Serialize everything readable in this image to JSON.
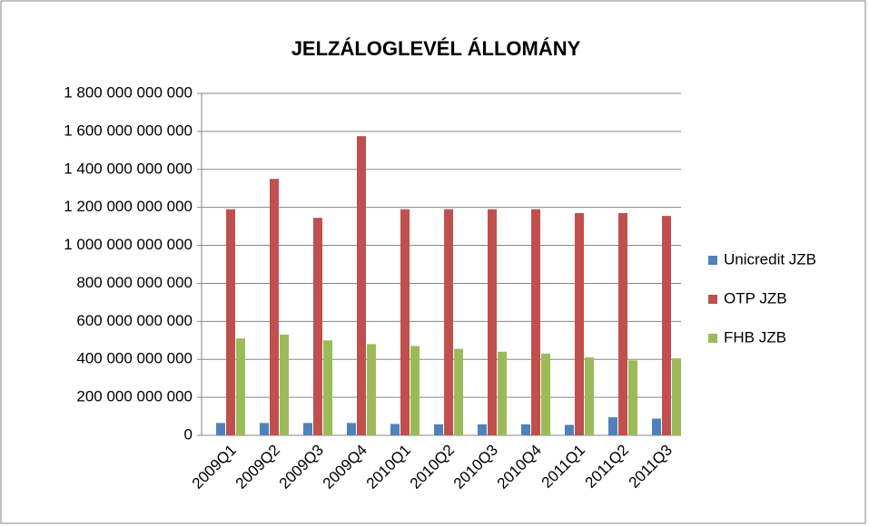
{
  "chart_data": {
    "type": "bar",
    "title": "JELZÁLOGLEVÉL ÁLLOMÁNY",
    "categories": [
      "2009Q1",
      "2009Q2",
      "2009Q3",
      "2009Q4",
      "2010Q1",
      "2010Q2",
      "2010Q3",
      "2010Q4",
      "2011Q1",
      "2011Q2",
      "2011Q3"
    ],
    "series": [
      {
        "name": "Unicredit JZB",
        "color": "#4f81bd",
        "values": [
          65000000000,
          65000000000,
          65000000000,
          65000000000,
          60000000000,
          58000000000,
          58000000000,
          58000000000,
          55000000000,
          95000000000,
          88000000000
        ]
      },
      {
        "name": "OTP JZB",
        "color": "#c0504d",
        "values": [
          1190000000000,
          1350000000000,
          1145000000000,
          1575000000000,
          1190000000000,
          1190000000000,
          1190000000000,
          1190000000000,
          1170000000000,
          1170000000000,
          1155000000000
        ]
      },
      {
        "name": "FHB JZB",
        "color": "#9bbb59",
        "values": [
          510000000000,
          530000000000,
          500000000000,
          480000000000,
          470000000000,
          455000000000,
          440000000000,
          430000000000,
          410000000000,
          395000000000,
          405000000000
        ]
      }
    ],
    "ylim": [
      0,
      1800000000000
    ],
    "yticks": [
      0,
      {
        "value": 200000000000,
        "label": "200 000 000 000"
      },
      {
        "value": 400000000000,
        "label": "400 000 000 000"
      },
      {
        "value": 600000000000,
        "label": "600 000 000 000"
      },
      {
        "value": 800000000000,
        "label": "800 000 000 000"
      },
      {
        "value": 1000000000000,
        "label": "1 000 000 000 000"
      },
      {
        "value": 1200000000000,
        "label": "1 200 000 000 000"
      },
      {
        "value": 1400000000000,
        "label": "1 400 000 000 000"
      },
      {
        "value": 1600000000000,
        "label": "1 600 000 000 000"
      },
      {
        "value": 1800000000000,
        "label": "1 800 000 000 000"
      }
    ],
    "grid": true,
    "legend": "right"
  }
}
